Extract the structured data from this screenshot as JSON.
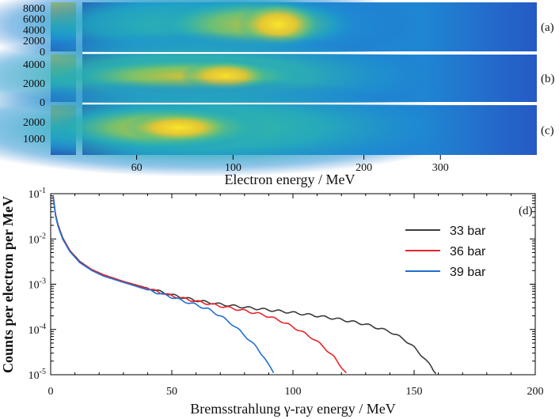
{
  "colors": {
    "cmap": [
      "#2d2a91",
      "#2659c4",
      "#1f86d3",
      "#1fa8c2",
      "#3cbd9a",
      "#8cc45a",
      "#d8bf36",
      "#f9cc2c",
      "#fbe52a"
    ],
    "bg_low": "#2c3fae",
    "axis": "#000000"
  },
  "chart_data": [
    {
      "type": "heatmap",
      "xlabel": "Electron energy / MeV",
      "x_scale": "log",
      "x_range": [
        45,
        500
      ],
      "x_ticks": [
        {
          "value": 60,
          "label": "60"
        },
        {
          "value": 100,
          "label": "100"
        },
        {
          "value": 200,
          "label": "200"
        },
        {
          "value": 300,
          "label": "300"
        }
      ],
      "panels": [
        {
          "id": "a",
          "label": "(a)",
          "ylim": [
            0,
            9000
          ],
          "yticks": [
            {
              "value": 0,
              "label": "0"
            },
            {
              "value": 2000,
              "label": "2000"
            },
            {
              "value": 4000,
              "label": "4000"
            },
            {
              "value": 6000,
              "label": "6000"
            },
            {
              "value": 8000,
              "label": "8000"
            }
          ],
          "blobs": [
            {
              "center_energy": 127,
              "x_width": 0.09,
              "y_width": 0.4,
              "amplitude": 1.0
            },
            {
              "center_energy": 112,
              "x_width": 0.22,
              "y_width": 0.5,
              "amplitude": 0.55
            },
            {
              "center_energy": 80,
              "x_width": 0.5,
              "y_width": 0.8,
              "amplitude": 0.15
            }
          ]
        },
        {
          "id": "b",
          "label": "(b)",
          "ylim": [
            0,
            5000
          ],
          "yticks": [
            {
              "value": 0,
              "label": "0"
            },
            {
              "value": 2000,
              "label": "2000"
            },
            {
              "value": 4000,
              "label": "4000"
            }
          ],
          "blobs": [
            {
              "center_energy": 96,
              "x_width": 0.1,
              "y_width": 0.3,
              "amplitude": 0.95
            },
            {
              "center_energy": 78,
              "x_width": 0.28,
              "y_width": 0.35,
              "amplitude": 0.6
            },
            {
              "center_energy": 80,
              "x_width": 0.55,
              "y_width": 0.85,
              "amplitude": 0.28
            }
          ]
        },
        {
          "id": "c",
          "label": "(c)",
          "ylim": [
            0,
            3000
          ],
          "yticks": [
            {
              "value": 1000,
              "label": "1000"
            },
            {
              "value": 2000,
              "label": "2000"
            }
          ],
          "blobs": [
            {
              "center_energy": 75,
              "x_width": 0.12,
              "y_width": 0.28,
              "amplitude": 1.0
            },
            {
              "center_energy": 68,
              "x_width": 0.24,
              "y_width": 0.42,
              "amplitude": 0.6
            },
            {
              "center_energy": 85,
              "x_width": 0.6,
              "y_width": 0.9,
              "amplitude": 0.22
            }
          ]
        }
      ]
    },
    {
      "type": "line",
      "title": "",
      "panel_label": "(d)",
      "xlabel": "Bremsstrahlung γ-ray energy / MeV",
      "ylabel": "Counts per electron per MeV",
      "y_scale": "log",
      "xlim": [
        0,
        200
      ],
      "ylim": [
        1e-05,
        0.1
      ],
      "xticks": [
        0,
        50,
        100,
        150,
        200
      ],
      "xtick_labels": [
        "0",
        "50",
        "100",
        "150",
        "200"
      ],
      "yticks": [
        1e-05,
        0.0001,
        0.001,
        0.01,
        0.1
      ],
      "ytick_labels": [
        {
          "base": "10",
          "exp": "-5"
        },
        {
          "base": "10",
          "exp": "-4"
        },
        {
          "base": "10",
          "exp": "-3"
        },
        {
          "base": "10",
          "exp": "-2"
        },
        {
          "base": "10",
          "exp": "-1"
        }
      ],
      "legend_position": "top-right",
      "series": [
        {
          "name": "33 bar",
          "color": "#3c3c3c",
          "points": [
            [
              1,
              0.09
            ],
            [
              2,
              0.035
            ],
            [
              3,
              0.021
            ],
            [
              5,
              0.0105
            ],
            [
              8,
              0.0055
            ],
            [
              12,
              0.0032
            ],
            [
              17,
              0.0021
            ],
            [
              22,
              0.0016
            ],
            [
              30,
              0.00115
            ],
            [
              40,
              0.00082
            ],
            [
              50,
              0.00058
            ],
            [
              60,
              0.00044
            ],
            [
              70,
              0.00036
            ],
            [
              80,
              0.00031
            ],
            [
              90,
              0.00027
            ],
            [
              100,
              0.000235
            ],
            [
              110,
              0.0002
            ],
            [
              120,
              0.000165
            ],
            [
              130,
              0.00013
            ],
            [
              140,
              9e-05
            ],
            [
              146,
              6e-05
            ],
            [
              150,
              4e-05
            ],
            [
              154,
              2.4e-05
            ],
            [
              157,
              1.5e-05
            ],
            [
              159,
              1.05e-05
            ]
          ]
        },
        {
          "name": "36 bar",
          "color": "#e8232a",
          "points": [
            [
              1,
              0.09
            ],
            [
              2,
              0.034
            ],
            [
              3,
              0.02
            ],
            [
              5,
              0.0102
            ],
            [
              8,
              0.0054
            ],
            [
              12,
              0.0031
            ],
            [
              17,
              0.0021
            ],
            [
              22,
              0.0016
            ],
            [
              30,
              0.00115
            ],
            [
              40,
              0.0008
            ],
            [
              50,
              0.00055
            ],
            [
              60,
              0.00042
            ],
            [
              70,
              0.00033
            ],
            [
              80,
              0.00026
            ],
            [
              88,
              0.00021
            ],
            [
              95,
              0.000155
            ],
            [
              102,
              0.0001
            ],
            [
              108,
              6.5e-05
            ],
            [
              113,
              4e-05
            ],
            [
              117,
              2.4e-05
            ],
            [
              120,
              1.5e-05
            ],
            [
              122,
              1.1e-05
            ]
          ]
        },
        {
          "name": "39 bar",
          "color": "#1f6fd1",
          "points": [
            [
              1,
              0.09
            ],
            [
              2,
              0.033
            ],
            [
              3,
              0.0195
            ],
            [
              5,
              0.0098
            ],
            [
              8,
              0.0052
            ],
            [
              12,
              0.003
            ],
            [
              17,
              0.002
            ],
            [
              22,
              0.0015
            ],
            [
              30,
              0.0011
            ],
            [
              40,
              0.00075
            ],
            [
              50,
              0.00052
            ],
            [
              55,
              0.00042
            ],
            [
              60,
              0.00035
            ],
            [
              65,
              0.00028
            ],
            [
              70,
              0.0002
            ],
            [
              75,
              0.00013
            ],
            [
              80,
              7.5e-05
            ],
            [
              85,
              4e-05
            ],
            [
              88,
              2.5e-05
            ],
            [
              90,
              1.6e-05
            ],
            [
              92,
              1.1e-05
            ]
          ]
        }
      ]
    }
  ]
}
